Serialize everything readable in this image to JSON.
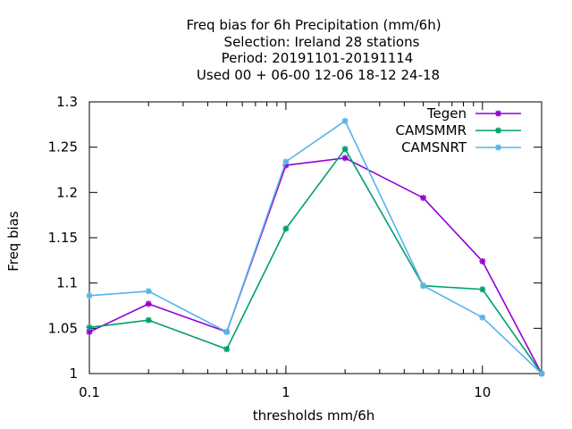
{
  "chart_data": {
    "type": "line",
    "title_lines": [
      "Freq bias  for 6h Precipitation (mm/6h)",
      "Selection: Ireland     28 stations",
      "Period: 20191101-20191114",
      "Used  00 + 06-00 12-06 18-12 24-18"
    ],
    "xlabel": "thresholds mm/6h",
    "ylabel": "Freq bias",
    "x_scale": "log",
    "xlim": [
      0.1,
      20
    ],
    "ylim": [
      1.0,
      1.3
    ],
    "x_ticks": [
      {
        "value": 0.1,
        "label": "0.1"
      },
      {
        "value": 1,
        "label": "1"
      },
      {
        "value": 10,
        "label": "10"
      }
    ],
    "y_ticks": [
      {
        "value": 1.0,
        "label": "1"
      },
      {
        "value": 1.05,
        "label": "1.05"
      },
      {
        "value": 1.1,
        "label": "1.1"
      },
      {
        "value": 1.15,
        "label": "1.15"
      },
      {
        "value": 1.2,
        "label": "1.2"
      },
      {
        "value": 1.25,
        "label": "1.25"
      },
      {
        "value": 1.3,
        "label": "1.3"
      }
    ],
    "x_minor_ticks": [
      0.2,
      0.3,
      0.4,
      0.5,
      0.6,
      0.7,
      0.8,
      0.9,
      2,
      3,
      4,
      5,
      6,
      7,
      8,
      9,
      20
    ],
    "grid": false,
    "legend_position": "top-right",
    "x": [
      0.1,
      0.2,
      0.5,
      1,
      2,
      5,
      10,
      20
    ],
    "series": [
      {
        "name": "Tegen",
        "color": "#9400d3",
        "values": [
          1.046,
          1.077,
          1.046,
          1.23,
          1.238,
          1.194,
          1.124,
          1.0
        ]
      },
      {
        "name": "CAMSMMR",
        "color": "#009e73",
        "values": [
          1.051,
          1.059,
          1.027,
          1.16,
          1.248,
          1.097,
          1.093,
          1.0
        ]
      },
      {
        "name": "CAMSNRT",
        "color": "#56b4e9",
        "values": [
          1.086,
          1.091,
          1.046,
          1.234,
          1.279,
          1.097,
          1.062,
          1.0
        ]
      }
    ]
  }
}
